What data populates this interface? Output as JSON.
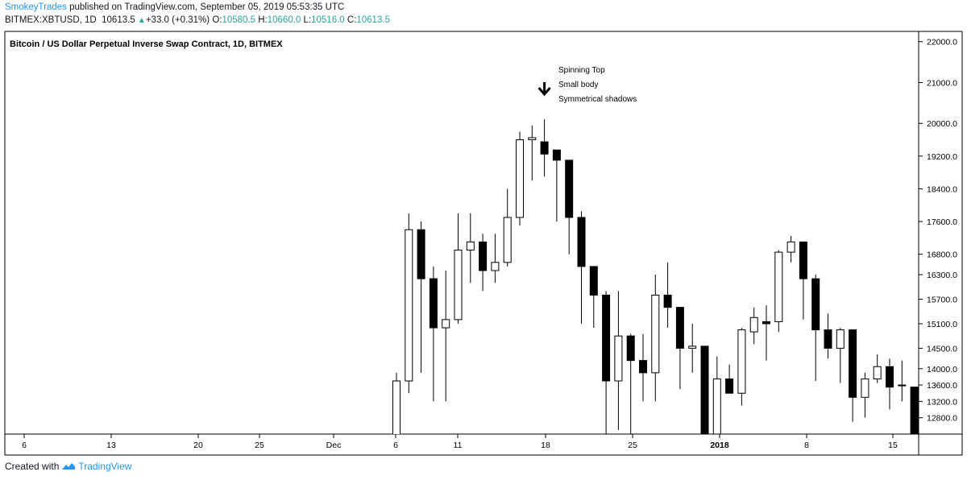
{
  "header": {
    "author": "SmokeyTrades",
    "published": "published on TradingView.com, September 05, 2019 05:53:35 UTC",
    "symbol_line": "BITMEX:XBTUSD, 1D",
    "last": "10613.5",
    "change": "+33.0 (+0.31%)",
    "o_label": "O:",
    "o": "10580.5",
    "h_label": "H:",
    "h": "10660.0",
    "l_label": "L:",
    "l": "10516.0",
    "c_label": "C:",
    "c": "10613.5"
  },
  "footer": {
    "created_with": "Created with",
    "brand": "TradingView",
    "logo_icon": "tradingview-logo-icon"
  },
  "chart_data": {
    "type": "candlestick",
    "title": "Bitcoin / US Dollar Perpetual Inverse Swap Contract, 1D, BITMEX",
    "ylim": [
      12400,
      22250
    ],
    "y_ticks": [
      "22000.0",
      "21000.0",
      "20000.0",
      "19200.0",
      "18400.0",
      "17600.0",
      "16800.0",
      "16300.0",
      "15700.0",
      "15100.0",
      "14500.0",
      "14000.0",
      "13600.0",
      "13200.0",
      "12800.0"
    ],
    "x_ticks": [
      "6",
      "13",
      "20",
      "25",
      "Dec",
      "6",
      "11",
      "18",
      "25",
      "2018",
      "8",
      "15"
    ],
    "annotation": {
      "lines": [
        "Spinning Top",
        "Small body",
        "Symmetrical shadows"
      ],
      "marker": "down-arrow-icon",
      "marker_index": 12
    },
    "colors": {
      "up_fill": "#ffffff",
      "down_fill": "#000000",
      "stroke": "#000000",
      "grid": "#000000"
    },
    "candles": [
      {
        "o": 11600,
        "h": 13900,
        "l": 11000,
        "c": 13700
      },
      {
        "o": 13700,
        "h": 17800,
        "l": 13400,
        "c": 17400
      },
      {
        "o": 17400,
        "h": 17600,
        "l": 13900,
        "c": 16200
      },
      {
        "o": 16200,
        "h": 16500,
        "l": 13200,
        "c": 15000
      },
      {
        "o": 15000,
        "h": 16400,
        "l": 13200,
        "c": 15200
      },
      {
        "o": 15200,
        "h": 17800,
        "l": 15100,
        "c": 16900
      },
      {
        "o": 16900,
        "h": 17800,
        "l": 16100,
        "c": 17100
      },
      {
        "o": 17100,
        "h": 17300,
        "l": 15900,
        "c": 16400
      },
      {
        "o": 16400,
        "h": 17300,
        "l": 16100,
        "c": 16600
      },
      {
        "o": 16600,
        "h": 18400,
        "l": 16500,
        "c": 17700
      },
      {
        "o": 17700,
        "h": 19800,
        "l": 17500,
        "c": 19600
      },
      {
        "o": 19600,
        "h": 19950,
        "l": 18600,
        "c": 19650
      },
      {
        "o": 19550,
        "h": 20100,
        "l": 18700,
        "c": 19250
      },
      {
        "o": 19350,
        "h": 19300,
        "l": 17600,
        "c": 19100
      },
      {
        "o": 19100,
        "h": 19100,
        "l": 16800,
        "c": 17700
      },
      {
        "o": 17700,
        "h": 17850,
        "l": 15100,
        "c": 16500
      },
      {
        "o": 16500,
        "h": 16500,
        "l": 15000,
        "c": 15800
      },
      {
        "o": 15800,
        "h": 15900,
        "l": 12000,
        "c": 13700
      },
      {
        "o": 13700,
        "h": 15900,
        "l": 12500,
        "c": 14800
      },
      {
        "o": 14800,
        "h": 14850,
        "l": 12000,
        "c": 14200
      },
      {
        "o": 14200,
        "h": 14850,
        "l": 13200,
        "c": 13900
      },
      {
        "o": 13900,
        "h": 16300,
        "l": 13200,
        "c": 15800
      },
      {
        "o": 15800,
        "h": 16600,
        "l": 15000,
        "c": 15500
      },
      {
        "o": 15500,
        "h": 15500,
        "l": 13500,
        "c": 14500
      },
      {
        "o": 14500,
        "h": 15100,
        "l": 13900,
        "c": 14550
      },
      {
        "o": 14550,
        "h": 14550,
        "l": 12000,
        "c": 12400
      },
      {
        "o": 12400,
        "h": 14300,
        "l": 12400,
        "c": 13750
      },
      {
        "o": 13750,
        "h": 14100,
        "l": 13400,
        "c": 13400
      },
      {
        "o": 13400,
        "h": 15000,
        "l": 13100,
        "c": 14950
      },
      {
        "o": 14900,
        "h": 15500,
        "l": 14600,
        "c": 15250
      },
      {
        "o": 15150,
        "h": 15550,
        "l": 14200,
        "c": 15100
      },
      {
        "o": 15150,
        "h": 16900,
        "l": 14900,
        "c": 16850
      },
      {
        "o": 16850,
        "h": 17250,
        "l": 16600,
        "c": 17100
      },
      {
        "o": 17100,
        "h": 17100,
        "l": 15200,
        "c": 16200
      },
      {
        "o": 16200,
        "h": 16300,
        "l": 13700,
        "c": 14950
      },
      {
        "o": 14950,
        "h": 15350,
        "l": 14250,
        "c": 14500
      },
      {
        "o": 14500,
        "h": 15000,
        "l": 13650,
        "c": 14950
      },
      {
        "o": 14950,
        "h": 14950,
        "l": 12700,
        "c": 13300
      },
      {
        "o": 13300,
        "h": 13900,
        "l": 12800,
        "c": 13750
      },
      {
        "o": 13750,
        "h": 14350,
        "l": 13650,
        "c": 14050
      },
      {
        "o": 14050,
        "h": 14250,
        "l": 13000,
        "c": 13550
      },
      {
        "o": 13600,
        "h": 14200,
        "l": 13200,
        "c": 13600
      },
      {
        "o": 13550,
        "h": 13550,
        "l": 12100,
        "c": 12200
      }
    ]
  }
}
